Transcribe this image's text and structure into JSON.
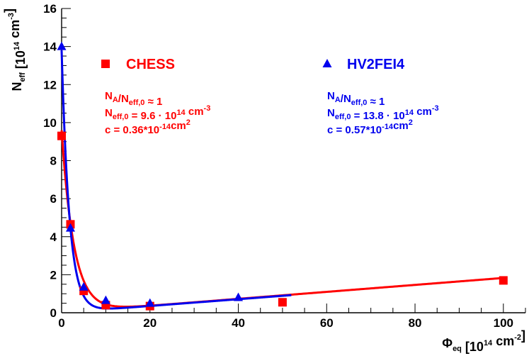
{
  "chart_data": {
    "type": "scatter",
    "xlim": [
      0,
      105
    ],
    "ylim": [
      0,
      16
    ],
    "x_ticks": [
      0,
      20,
      40,
      60,
      80,
      100
    ],
    "y_ticks": [
      0,
      2,
      4,
      6,
      8,
      10,
      12,
      14,
      16
    ],
    "x_minor_step": 5,
    "y_minor_step": 0.5,
    "xlabel": {
      "main": "Φ",
      "sub": "eq",
      "unit": " [10",
      "sup": "14",
      "unit2": " cm",
      "sup2": "-2",
      "close": "]"
    },
    "ylabel": {
      "main": "N",
      "sub": "eff",
      "unit": " [10",
      "sup": "14",
      "unit2": " cm",
      "sup2": "-3",
      "close": "]"
    },
    "series": [
      {
        "name": "CHESS",
        "color": "#ff0000",
        "marker": "square",
        "points": [
          [
            0,
            9.3
          ],
          [
            2,
            4.65
          ],
          [
            5,
            1.15
          ],
          [
            10,
            0.4
          ],
          [
            20,
            0.35
          ],
          [
            50,
            0.55
          ],
          [
            100,
            1.7
          ]
        ],
        "fit": {
          "n0": 9.6,
          "c": 0.36,
          "slope": 0.0183,
          "x_range": [
            0,
            100
          ]
        },
        "annotation": [
          {
            "parts": [
              {
                "t": "N"
              },
              {
                "t": "A",
                "s": "sub"
              },
              {
                "t": "/N"
              },
              {
                "t": "eff,0",
                "s": "sub"
              },
              {
                "t": " ≈ 1"
              }
            ]
          },
          {
            "parts": [
              {
                "t": "N"
              },
              {
                "t": "eff,0",
                "s": "sub"
              },
              {
                "t": " = 9.6 · 10"
              },
              {
                "t": "14",
                "s": "sup"
              },
              {
                "t": " cm"
              },
              {
                "t": "-3",
                "s": "sup"
              }
            ]
          },
          {
            "parts": [
              {
                "t": "c = 0.36*10"
              },
              {
                "t": "-14",
                "s": "sup"
              },
              {
                "t": "cm"
              },
              {
                "t": "2",
                "s": "sup"
              }
            ]
          }
        ]
      },
      {
        "name": "HV2FEI4",
        "color": "#0000ee",
        "marker": "triangle",
        "points": [
          [
            0,
            14.0
          ],
          [
            2,
            4.45
          ],
          [
            5,
            1.35
          ],
          [
            10,
            0.65
          ],
          [
            20,
            0.5
          ],
          [
            40,
            0.8
          ]
        ],
        "fit": {
          "n0": 13.8,
          "c": 0.57,
          "slope": 0.0178,
          "x_range": [
            0,
            52
          ]
        },
        "annotation": [
          {
            "parts": [
              {
                "t": "N"
              },
              {
                "t": "A",
                "s": "sub"
              },
              {
                "t": "/N"
              },
              {
                "t": "eff,0",
                "s": "sub"
              },
              {
                "t": " ≈ 1"
              }
            ]
          },
          {
            "parts": [
              {
                "t": "N"
              },
              {
                "t": "eff,0",
                "s": "sub"
              },
              {
                "t": " = 13.8 · 10"
              },
              {
                "t": "14",
                "s": "sup"
              },
              {
                "t": " cm"
              },
              {
                "t": "-3",
                "s": "sup"
              }
            ]
          },
          {
            "parts": [
              {
                "t": "c = 0.57*10"
              },
              {
                "t": "-14",
                "s": "sup"
              },
              {
                "t": "cm"
              },
              {
                "t": "2",
                "s": "sup"
              }
            ]
          }
        ]
      }
    ]
  }
}
